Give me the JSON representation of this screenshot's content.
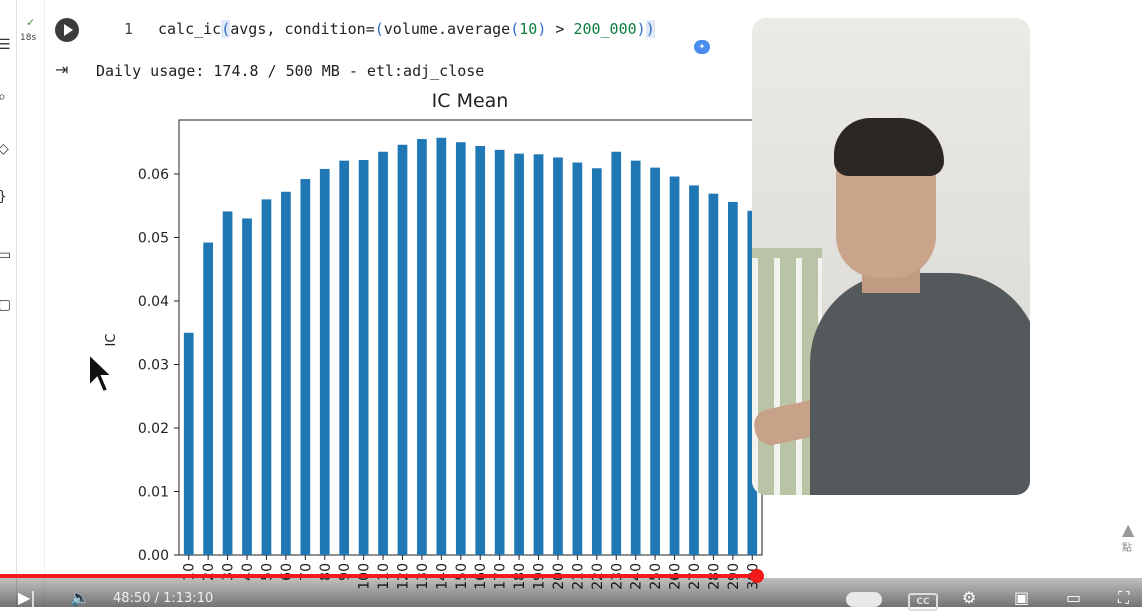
{
  "cell": {
    "status_icon": "check-icon",
    "exec_time": "18s",
    "line_number": "1",
    "code": {
      "fn": "calc_ic",
      "open_paren": "(",
      "arg1": "avgs, condition=",
      "open_paren2": "(",
      "expr": "volume.average",
      "open_paren3": "(",
      "num1": "10",
      "close_paren3": ")",
      "op": " > ",
      "num2": "200_000",
      "close_paren2": ")",
      "close_paren": ")"
    },
    "output_status": "Daily usage: 174.8 / 500 MB - etl:adj_close"
  },
  "chart_data": {
    "type": "bar",
    "title": "IC Mean",
    "xlabel": "",
    "ylabel": "IC",
    "ylim": [
      0,
      0.0685
    ],
    "yticks": [
      "0.00",
      "0.01",
      "0.02",
      "0.03",
      "0.04",
      "0.05",
      "0.06"
    ],
    "grid": false,
    "categories": [
      "10",
      "20",
      "30",
      "40",
      "50",
      "60",
      "70",
      "80",
      "90",
      "100",
      "110",
      "120",
      "130",
      "140",
      "150",
      "160",
      "170",
      "180",
      "190",
      "200",
      "210",
      "220",
      "230",
      "240",
      "250",
      "260",
      "270",
      "280",
      "290",
      "300"
    ],
    "values": [
      0.035,
      0.0492,
      0.0541,
      0.053,
      0.056,
      0.0572,
      0.0592,
      0.0608,
      0.0621,
      0.0622,
      0.0635,
      0.0646,
      0.0655,
      0.0657,
      0.065,
      0.0644,
      0.0638,
      0.0632,
      0.0631,
      0.0626,
      0.0618,
      0.0609,
      0.0635,
      0.0621,
      0.061,
      0.0596,
      0.0582,
      0.0569,
      0.0556,
      0.0542
    ],
    "bar_color": "#1f77b4"
  },
  "player": {
    "current_time": "48:50",
    "separator": " / ",
    "duration": "1:13:10",
    "progress": 0.663,
    "accent": "#f21b1b",
    "cc_label": "CC",
    "side_label": "點"
  },
  "icons": [
    "play-icon",
    "output-icon",
    "cursor-icon",
    "volume-icon",
    "settings-icon",
    "fullscreen-icon"
  ]
}
